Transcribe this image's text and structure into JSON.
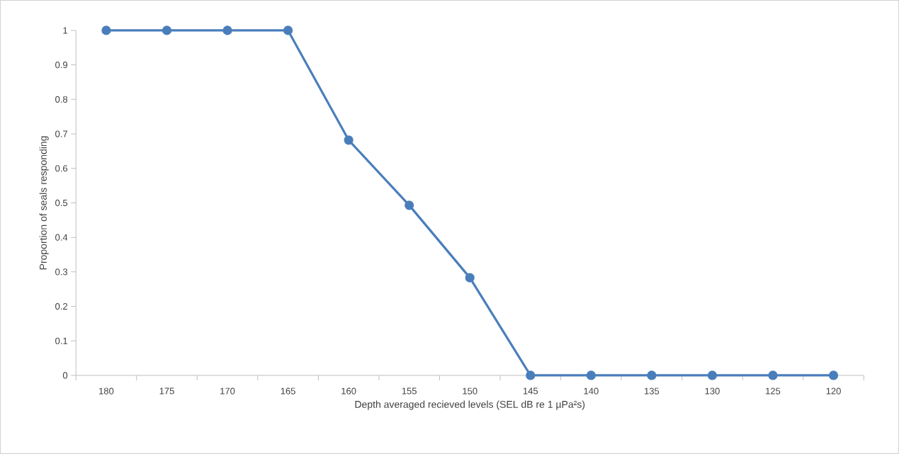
{
  "chart_data": {
    "type": "line",
    "xlabel": "Depth averaged recieved levels (SEL dB re 1 µPa²s)",
    "ylabel": "Proportion of seals responding",
    "categories": [
      "180",
      "175",
      "170",
      "165",
      "160",
      "155",
      "150",
      "145",
      "140",
      "135",
      "130",
      "125",
      "120"
    ],
    "values": [
      1,
      1,
      1,
      1,
      0.682,
      0.493,
      0.283,
      0,
      0,
      0,
      0,
      0,
      0
    ],
    "color": "#4a7ebb",
    "marker": "circle",
    "line_style": "solid",
    "ylim": [
      0,
      1
    ],
    "yticks": [
      0,
      0.1,
      0.2,
      0.3,
      0.4,
      0.5,
      0.6,
      0.7,
      0.8,
      0.9,
      1
    ]
  }
}
